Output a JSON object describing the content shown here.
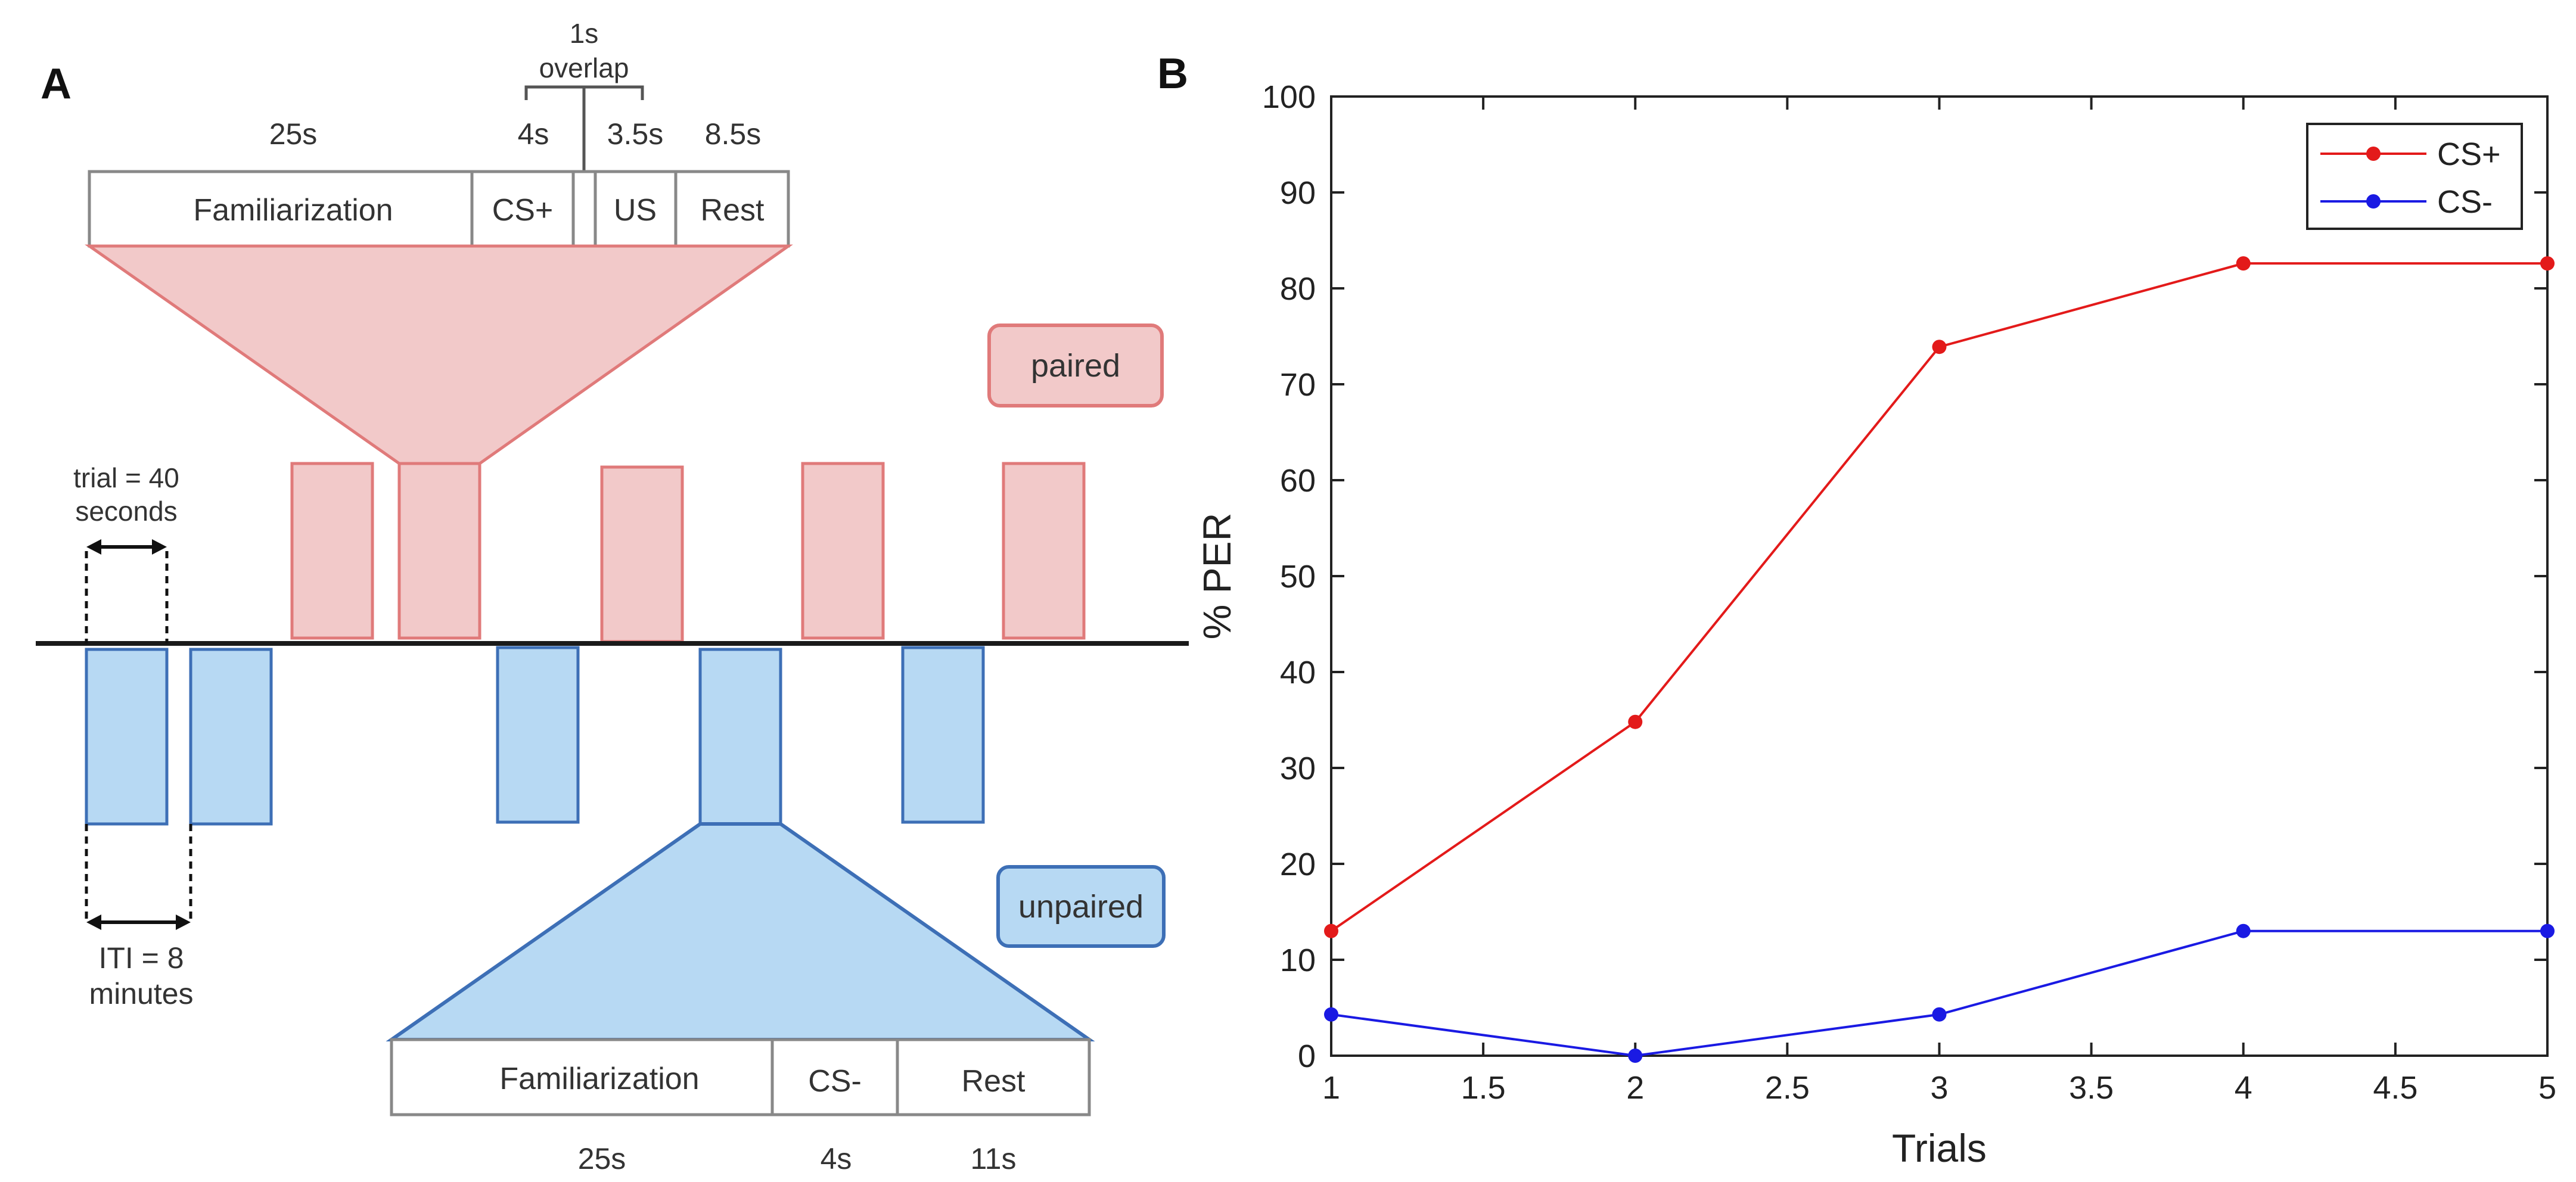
{
  "panel_a": {
    "label": "A",
    "overlap_value": "1s",
    "overlap_word": "overlap",
    "top_durations": [
      "25s",
      "4s",
      "3.5s",
      "8.5s"
    ],
    "top_segments": [
      "Familiarization",
      "CS+",
      "US",
      "Rest"
    ],
    "paired_label": "paired",
    "unpaired_label": "unpaired",
    "trial_line1": "trial = 40",
    "trial_line2": "seconds",
    "iti_line1": "ITI = 8",
    "iti_line2": "minutes",
    "bottom_segments": [
      "Familiarization",
      "CS-",
      "Rest"
    ],
    "bottom_durations": [
      "25s",
      "4s",
      "11s"
    ],
    "colors": {
      "paired_fill": "#f2c9c9",
      "paired_stroke": "#e07a7a",
      "unpaired_fill": "#b7d9f3",
      "unpaired_stroke": "#3d6fb6",
      "timeline": "#1a1a1a"
    }
  },
  "panel_b": {
    "label": "B"
  },
  "chart_data": {
    "type": "line",
    "title": "",
    "xlabel": "Trials",
    "ylabel": "% PER",
    "x": [
      1,
      2,
      3,
      4,
      5
    ],
    "xlim": [
      1,
      5
    ],
    "ylim": [
      0,
      100
    ],
    "xticks": [
      1,
      1.5,
      2,
      2.5,
      3,
      3.5,
      4,
      4.5,
      5
    ],
    "xtick_labels": [
      "1",
      "1.5",
      "2",
      "2.5",
      "3",
      "3.5",
      "4",
      "4.5",
      "5"
    ],
    "yticks": [
      0,
      10,
      20,
      30,
      40,
      50,
      60,
      70,
      80,
      90,
      100
    ],
    "ytick_labels": [
      "0",
      "10",
      "20",
      "30",
      "40",
      "50",
      "60",
      "70",
      "80",
      "90",
      "100"
    ],
    "grid": false,
    "legend_position": "top-right",
    "series": [
      {
        "name": "CS+",
        "color": "#e31a1a",
        "values": [
          13.0,
          34.8,
          73.9,
          82.6,
          82.6
        ]
      },
      {
        "name": "CS-",
        "color": "#1a1ae3",
        "values": [
          4.3,
          0.0,
          4.3,
          13.0,
          13.0
        ]
      }
    ]
  }
}
